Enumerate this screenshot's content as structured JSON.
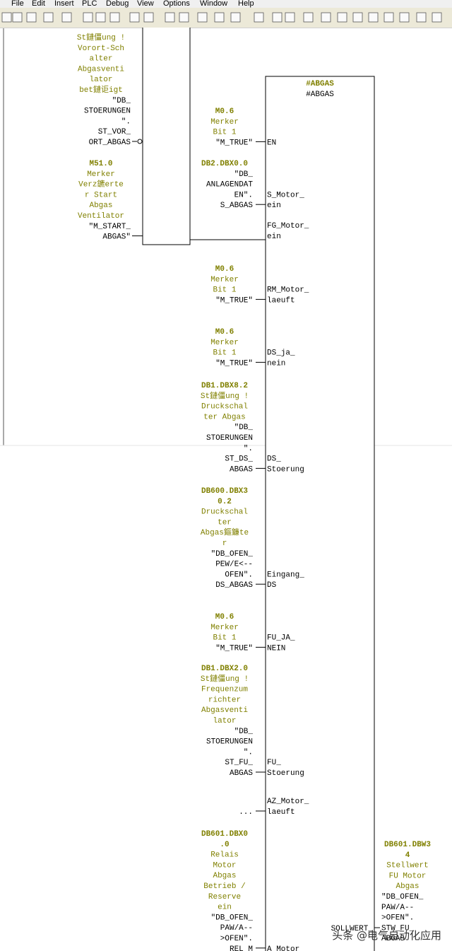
{
  "menu": [
    "File",
    "Edit",
    "Insert",
    "PLC",
    "Debug",
    "View",
    "Options",
    "Window",
    "Help"
  ],
  "left_block": {
    "inputs": [
      {
        "comment": [
          "St鏈僵ung !",
          "Vorort-Sch",
          "alter",
          "Abgasventi",
          "lator",
          "bet鏈讵igt"
        ],
        "symbol": [
          "\"DB_",
          "STOERUNGEN",
          "\".",
          "ST_VOR_",
          "ORT_ABGAS"
        ]
      },
      {
        "address": [
          "M51.0"
        ],
        "comment": [
          "Merker",
          "Verz鑣erte",
          "r Start",
          "Abgas",
          "Ventilator"
        ],
        "symbol": [
          "\"M_START_",
          "ABGAS\""
        ]
      }
    ]
  },
  "fb": {
    "instance": "#ABGAS",
    "name": "#ABGAS",
    "inputs": [
      {
        "address": [
          "M0.6"
        ],
        "comment": [
          "Merker",
          "Bit 1"
        ],
        "symbol": [
          "\"M_TRUE\""
        ],
        "pin": [
          "EN"
        ]
      },
      {
        "address": [
          "DB2.DBX0.0"
        ],
        "symbol": [
          "\"DB_",
          "ANLAGENDAT",
          "EN\".",
          "S_ABGAS"
        ],
        "pin": [
          "S_Motor_",
          "ein"
        ]
      },
      {
        "pin": [
          "FG_Motor_",
          "ein"
        ]
      },
      {
        "address": [
          "M0.6"
        ],
        "comment": [
          "Merker",
          "Bit 1"
        ],
        "symbol": [
          "\"M_TRUE\""
        ],
        "pin": [
          "RM_Motor_",
          "laeuft"
        ]
      },
      {
        "address": [
          "M0.6"
        ],
        "comment": [
          "Merker",
          "Bit 1"
        ],
        "symbol": [
          "\"M_TRUE\""
        ],
        "pin": [
          "DS_ja_",
          "nein"
        ]
      },
      {
        "address": [
          "DB1.DBX8.2"
        ],
        "comment": [
          "St鏈僵ung !",
          "Druckschal",
          "ter Abgas"
        ],
        "symbol": [
          "\"DB_",
          "STOERUNGEN",
          "\".",
          "ST_DS_",
          "ABGAS"
        ],
        "pin": [
          "DS_",
          "Stoerung"
        ]
      },
      {
        "address": [
          "DB600.DBX3",
          "0.2"
        ],
        "comment": [
          "Druckschal",
          "ter",
          "Abgas鏂鐮te",
          "r"
        ],
        "symbol": [
          "\"DB_OFEN_",
          "PEW/E<--",
          "OFEN\".",
          "DS_ABGAS"
        ],
        "pin": [
          "Eingang_",
          "DS"
        ]
      },
      {
        "address": [
          "M0.6"
        ],
        "comment": [
          "Merker",
          "Bit 1"
        ],
        "symbol": [
          "\"M_TRUE\""
        ],
        "pin": [
          "FU_JA_",
          "NEIN"
        ]
      },
      {
        "address": [
          "DB1.DBX2.0"
        ],
        "comment": [
          "St鏈僵ung !",
          "Frequenzum",
          "richter",
          "Abgasventi",
          "lator"
        ],
        "symbol": [
          "\"DB_",
          "STOERUNGEN",
          "\".",
          "ST_FU_",
          "ABGAS"
        ],
        "pin": [
          "FU_",
          "Stoerung"
        ]
      },
      {
        "symbol": [
          "..."
        ],
        "pin": [
          "AZ_Motor_",
          "laeuft"
        ]
      },
      {
        "address": [
          "DB601.DBX0",
          ".0"
        ],
        "comment": [
          "Relais",
          "Motor",
          "Abgas",
          "Betrieb /",
          "Reserve",
          "ein"
        ],
        "symbol": [
          "\"DB_OFEN_",
          "PAW/A--",
          ">OFEN\".",
          "REL_M"
        ],
        "pin": [
          "A_Motor_"
        ]
      }
    ],
    "output": {
      "address": [
        "DB601.DBW3",
        "4"
      ],
      "comment": [
        "Stellwert",
        "FU Motor",
        "Abgas"
      ],
      "symbol": [
        "\"DB_OFEN_",
        "PAW/A--",
        ">OFEN\".",
        "STW_FU_",
        "ABGAS"
      ],
      "pin": "SOLLWERT_"
    }
  },
  "watermark": "头条 @电气自动化应用"
}
